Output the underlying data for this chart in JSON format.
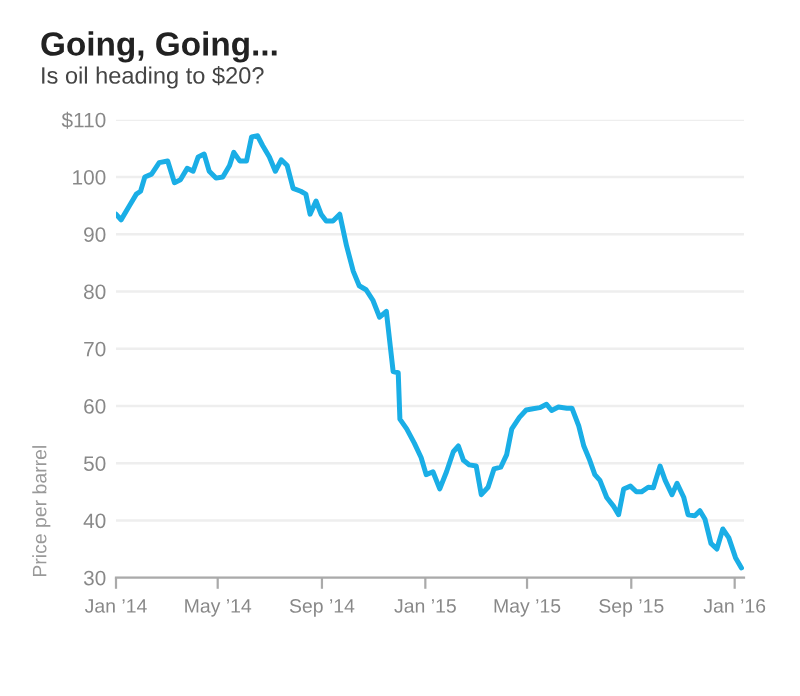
{
  "chart_data": {
    "type": "line",
    "title": "Going, Going...",
    "subtitle": "Is oil heading to $20?",
    "ylabel": "Price per barrel",
    "x": [
      "2014-01-01",
      "2014-01-07",
      "2014-01-17",
      "2014-01-25",
      "2014-01-30",
      "2014-02-04",
      "2014-02-12",
      "2014-02-21",
      "2014-03-03",
      "2014-03-11",
      "2014-03-18",
      "2014-03-26",
      "2014-04-02",
      "2014-04-08",
      "2014-04-15",
      "2014-04-21",
      "2014-04-29",
      "2014-05-07",
      "2014-05-15",
      "2014-05-20",
      "2014-05-27",
      "2014-06-04",
      "2014-06-10",
      "2014-06-17",
      "2014-06-23",
      "2014-07-01",
      "2014-07-08",
      "2014-07-15",
      "2014-07-22",
      "2014-07-29",
      "2014-08-07",
      "2014-08-13",
      "2014-08-18",
      "2014-08-25",
      "2014-08-31",
      "2014-09-06",
      "2014-09-14",
      "2014-09-22",
      "2014-09-30",
      "2014-10-08",
      "2014-10-15",
      "2014-10-23",
      "2014-10-31",
      "2014-11-08",
      "2014-11-16",
      "2014-11-24",
      "2014-11-30",
      "2014-12-02",
      "2014-12-10",
      "2014-12-19",
      "2014-12-27",
      "2015-01-02",
      "2015-01-10",
      "2015-01-18",
      "2015-01-26",
      "2015-02-03",
      "2015-02-09",
      "2015-02-15",
      "2015-02-22",
      "2015-03-02",
      "2015-03-08",
      "2015-03-16",
      "2015-03-23",
      "2015-03-31",
      "2015-04-07",
      "2015-04-13",
      "2015-04-22",
      "2015-04-30",
      "2015-05-08",
      "2015-05-16",
      "2015-05-24",
      "2015-05-30",
      "2015-06-07",
      "2015-06-17",
      "2015-06-23",
      "2015-07-01",
      "2015-07-07",
      "2015-07-14",
      "2015-07-20",
      "2015-07-26",
      "2015-08-03",
      "2015-08-11",
      "2015-08-17",
      "2015-08-23",
      "2015-08-31",
      "2015-09-07",
      "2015-09-13",
      "2015-09-21",
      "2015-09-27",
      "2015-10-05",
      "2015-10-11",
      "2015-10-19",
      "2015-10-25",
      "2015-11-02",
      "2015-11-07",
      "2015-11-15",
      "2015-11-21",
      "2015-11-27",
      "2015-12-04",
      "2015-12-11",
      "2015-12-18",
      "2015-12-25",
      "2016-01-02",
      "2016-01-09"
    ],
    "series": [
      {
        "color": "#1aaee6",
        "values": [
          93.5,
          92.5,
          95,
          97,
          97.5,
          100,
          100.5,
          102.5,
          102.8,
          99,
          99.5,
          101.5,
          101,
          103.5,
          104,
          101,
          99.8,
          100,
          102,
          104.3,
          102.8,
          102.8,
          107,
          107.2,
          105.5,
          103.5,
          101,
          103,
          102,
          98,
          97.5,
          97,
          93.5,
          95.8,
          93.5,
          92.3,
          92.3,
          93.5,
          88,
          83.5,
          81,
          80.3,
          78.5,
          75.5,
          76.5,
          66,
          65.8,
          57.7,
          56,
          53.5,
          51,
          48,
          48.5,
          45.5,
          48.5,
          52,
          53,
          50.5,
          49.7,
          49.5,
          44.5,
          45.8,
          49,
          49.3,
          51.5,
          56,
          58,
          59.3,
          59.5,
          59.7,
          60.3,
          59.2,
          59.8,
          59.6,
          59.6,
          56.5,
          53,
          50.5,
          48,
          47,
          44,
          42.5,
          41,
          45.5,
          46,
          45,
          45,
          45.8,
          45.7,
          49.5,
          47,
          44.5,
          46.5,
          44,
          41,
          40.8,
          41.7,
          40.2,
          36,
          35,
          38.5,
          37,
          33.5,
          31.7
        ]
      }
    ],
    "xlim": [
      "2014-01-01",
      "2016-01-12"
    ],
    "xticks": [
      {
        "value": "2014-01-01",
        "label": "Jan ’14"
      },
      {
        "value": "2014-05-01",
        "label": "May ’14"
      },
      {
        "value": "2014-09-01",
        "label": "Sep ’14"
      },
      {
        "value": "2015-01-01",
        "label": "Jan ’15"
      },
      {
        "value": "2015-05-01",
        "label": "May ’15"
      },
      {
        "value": "2015-09-01",
        "label": "Sep ’15"
      },
      {
        "value": "2016-01-01",
        "label": "Jan ’16"
      }
    ],
    "ylim": [
      30,
      110
    ],
    "yticks": [
      30,
      40,
      50,
      60,
      70,
      80,
      90,
      100,
      {
        "value": 110,
        "label": "$110"
      }
    ],
    "grid": "y",
    "marker": "none",
    "line_style": "solid"
  }
}
